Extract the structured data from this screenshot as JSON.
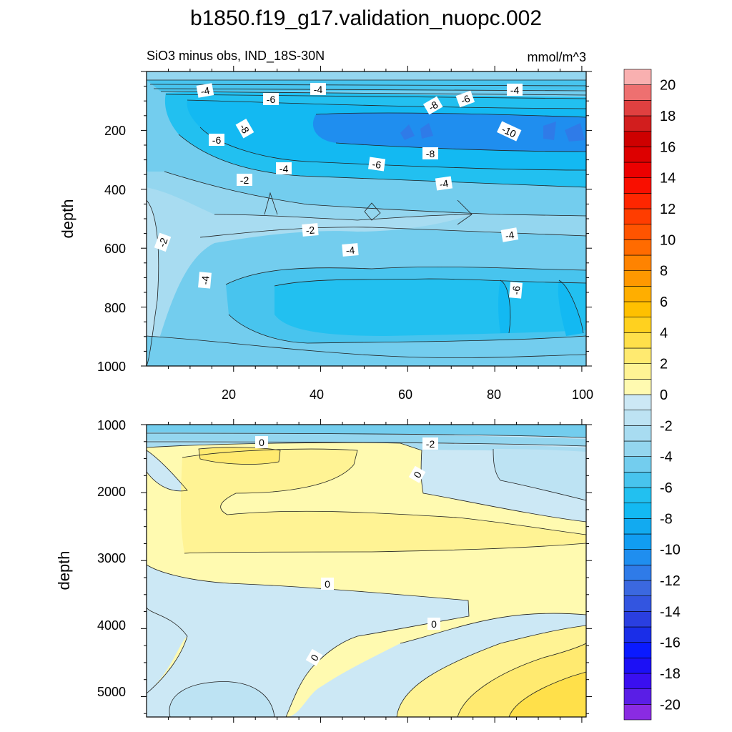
{
  "title": "b1850.f19_g17.validation_nuopc.002",
  "chart_data": {
    "type": "heatmap",
    "subtitle_left": "SiO3 minus obs, IND_18S-30N",
    "subtitle_right": "mmol/m^3",
    "panels": [
      {
        "ylabel": "depth",
        "ylim": [
          1000,
          0
        ],
        "xlim": [
          0,
          101
        ],
        "xticks": [
          "20",
          "40",
          "60",
          "80",
          "100"
        ],
        "yticks": [
          "200",
          "400",
          "600",
          "800",
          "1000"
        ],
        "contour_labels": [
          "-4",
          "-6",
          "-4",
          "-8",
          "-6",
          "-4",
          "-8",
          "-10",
          "-6",
          "-8",
          "-4",
          "-6",
          "-2",
          "-4",
          "-2",
          "-2",
          "-4",
          "-4",
          "-4",
          "-6"
        ]
      },
      {
        "ylabel": "depth",
        "ylim": [
          5300,
          1000
        ],
        "xlim": [
          0,
          101
        ],
        "yticks": [
          "1000",
          "2000",
          "3000",
          "4000",
          "5000"
        ],
        "contour_labels": [
          "0",
          "-2",
          "0",
          "0",
          "0",
          "0"
        ]
      }
    ],
    "colorbar": {
      "levels": [
        -21,
        -20,
        -19,
        -18,
        -17,
        -16,
        -15,
        -14,
        -13,
        -12,
        -11,
        -10,
        -9,
        -8,
        -7,
        -6,
        -5,
        -4,
        -3,
        -2,
        -1,
        0,
        1,
        2,
        3,
        4,
        5,
        6,
        7,
        8,
        9,
        10,
        11,
        12,
        13,
        14,
        15,
        16,
        17,
        18,
        19,
        20,
        21
      ],
      "colors": [
        "#8a2be2",
        "#5a1ee6",
        "#3a0ff0",
        "#1c10f5",
        "#0a1aff",
        "#1a2ee8",
        "#2a3fe0",
        "#3355e0",
        "#3b68e0",
        "#2f7be8",
        "#1f8eef",
        "#119df2",
        "#12aaf0",
        "#13b9f2",
        "#22c0f0",
        "#48c4ee",
        "#73cdee",
        "#94d6ef",
        "#a8dcf1",
        "#bde3f3",
        "#cce8f5",
        "#fffab0",
        "#fff394",
        "#ffea70",
        "#ffe04a",
        "#ffd11f",
        "#ffc000",
        "#ffae00",
        "#ff9800",
        "#ff8300",
        "#ff6b00",
        "#ff5400",
        "#ff3d00",
        "#ff2600",
        "#f90f00",
        "#ec0000",
        "#dd0000",
        "#ce0000",
        "#d21e1e",
        "#e04040",
        "#ee7070",
        "#f9b0b0"
      ],
      "labels": [
        "20",
        "18",
        "16",
        "14",
        "12",
        "10",
        "8",
        "6",
        "4",
        "2",
        "0",
        "-2",
        "-4",
        "-6",
        "-8",
        "-10",
        "-12",
        "-14",
        "-16",
        "-18",
        "-20"
      ]
    }
  }
}
